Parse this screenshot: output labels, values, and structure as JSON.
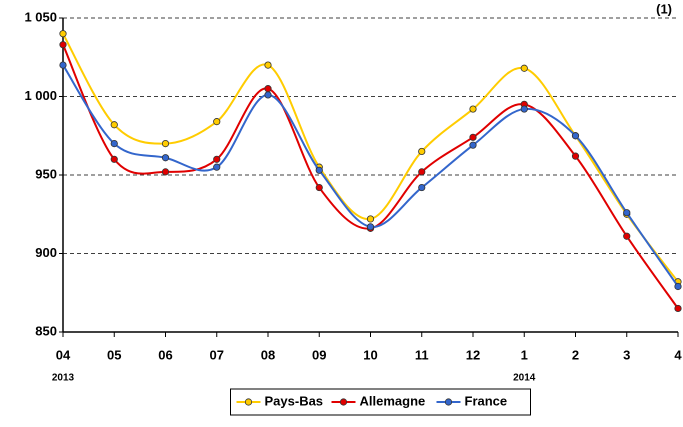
{
  "chart_data": {
    "type": "line",
    "annotation": "(1)",
    "categories": [
      "04",
      "05",
      "06",
      "07",
      "08",
      "09",
      "10",
      "11",
      "12",
      "1",
      "2",
      "3",
      "4"
    ],
    "x_sublabels": [
      "2013",
      null,
      null,
      null,
      null,
      null,
      null,
      null,
      null,
      "2014",
      null,
      null,
      null
    ],
    "series": [
      {
        "name": "Pays-Bas",
        "color": "#ffcc00",
        "values": [
          1040,
          982,
          970,
          984,
          1020,
          955,
          922,
          965,
          992,
          1018,
          975,
          925,
          882
        ]
      },
      {
        "name": "Allemagne",
        "color": "#e00000",
        "values": [
          1033,
          960,
          952,
          960,
          1005,
          942,
          916,
          952,
          974,
          995,
          962,
          911,
          865
        ]
      },
      {
        "name": "France",
        "color": "#3366cc",
        "values": [
          1020,
          970,
          961,
          955,
          1001,
          953,
          917,
          942,
          969,
          992,
          975,
          926,
          879
        ]
      }
    ],
    "ylim": [
      850,
      1050
    ],
    "yticks": [
      850,
      900,
      950,
      {
        "value": 1000,
        "label": "1 000"
      },
      {
        "value": 1050,
        "label": "1 050"
      }
    ],
    "grid": true,
    "legend": "bottom"
  }
}
